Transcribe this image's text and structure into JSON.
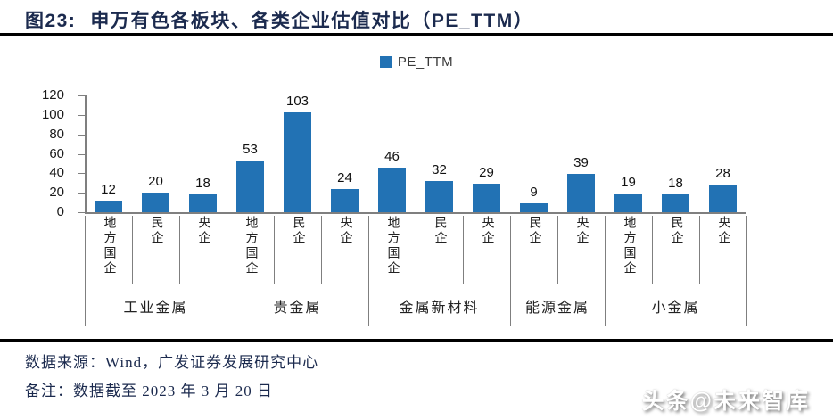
{
  "header": {
    "figure_label": "图23:",
    "title": "申万有色各板块、各类企业估值对比（PE_TTM）"
  },
  "chart_data": {
    "type": "bar",
    "title": "申万有色各板块、各类企业估值对比（PE_TTM）",
    "legend": "PE_TTM",
    "legend_position": "top-center",
    "grid": false,
    "ylim": [
      0,
      120
    ],
    "ytick_step": 20,
    "yticks": [
      0,
      20,
      40,
      60,
      80,
      100,
      120
    ],
    "bar_color": "#2272B4",
    "categories": [
      "地方国企",
      "民企",
      "央企",
      "地方国企",
      "民企",
      "央企",
      "地方国企",
      "民企",
      "央企",
      "民企",
      "央企",
      "地方国企",
      "民企",
      "央企"
    ],
    "values": [
      12,
      20,
      18,
      53,
      103,
      24,
      46,
      32,
      29,
      9,
      39,
      19,
      18,
      28
    ],
    "groups": [
      {
        "label": "工业金属",
        "span": 3
      },
      {
        "label": "贵金属",
        "span": 3
      },
      {
        "label": "金属新材料",
        "span": 3
      },
      {
        "label": "能源金属",
        "span": 2
      },
      {
        "label": "小金属",
        "span": 3
      }
    ]
  },
  "footer": {
    "source": "数据来源：Wind，广发证券发展研究中心",
    "note": "备注：数据截至 2023 年 3 月 20 日",
    "watermark": "头条@未来智库"
  },
  "colors": {
    "accent_blue": "#2272B4",
    "title_navy": "#1B2A4E",
    "axis_gray": "#7F7F7F",
    "rule_black": "#000000"
  }
}
